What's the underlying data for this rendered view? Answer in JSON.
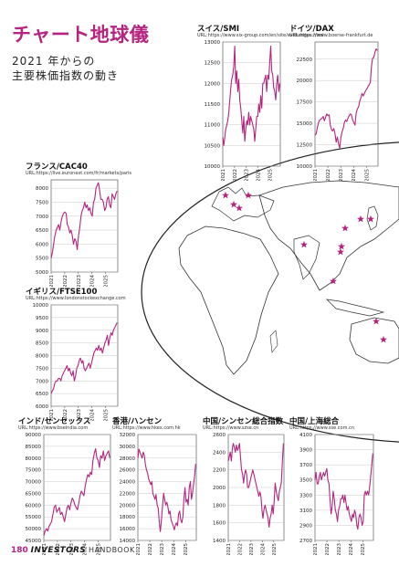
{
  "page": {
    "title": "チャート地球儀",
    "subtitle_line1": "2021 年からの",
    "subtitle_line2": "主要株価指数の動き",
    "footer_page_number": "180",
    "footer_brand": "INVESTORS",
    "footer_brand_sub": "HANDBOOK"
  },
  "colors": {
    "accent": "#b5247e",
    "line": "#b5247e",
    "star": "#b5247e"
  },
  "chart_data": [
    {
      "id": "smi",
      "type": "line",
      "title": "スイス/SMI",
      "url": "URL:https://www.six-group.com/en/site/exchanges.html",
      "yticks": [
        10000,
        10500,
        11000,
        11500,
        12000,
        12500,
        13000
      ],
      "ylim": [
        10000,
        13000
      ],
      "xlim": [
        2021,
        2025.9
      ],
      "xticks": [
        "2021",
        "2022",
        "2023",
        "2024",
        "2025"
      ],
      "series": [
        {
          "values": [
            10700,
            10500,
            10700,
            10900,
            11000,
            11100,
            11300,
            11600,
            11900,
            12100,
            12200,
            12400,
            12900,
            12000,
            12300,
            11800,
            12100,
            11600,
            11400,
            11100,
            10800,
            11200,
            10600,
            10900,
            11100,
            11000,
            11300,
            11000,
            11200,
            11100,
            11000,
            10900,
            10600,
            10900,
            11200,
            11200,
            11500,
            11300,
            11700,
            11400,
            12000,
            12000,
            12100,
            12200,
            11800,
            12200,
            12100,
            12500,
            12900,
            12300,
            12200,
            11900,
            11800,
            11600,
            12000,
            12200,
            11800,
            12000
          ]
        }
      ]
    },
    {
      "id": "dax",
      "type": "line",
      "title": "ドイツ/DAX",
      "url": "URL:https://www.boerse-frankfurt.de",
      "yticks": [
        10000,
        12500,
        15000,
        17500,
        20000,
        22500
      ],
      "ylim": [
        10000,
        24500
      ],
      "xlim": [
        2021,
        2025.9
      ],
      "xticks": [
        "2021",
        "2022",
        "2023",
        "2024",
        "2025"
      ],
      "series": [
        {
          "values": [
            13600,
            13800,
            14500,
            15100,
            15400,
            15500,
            15600,
            15800,
            15300,
            15700,
            16100,
            15900,
            16000,
            14800,
            14300,
            14100,
            14400,
            13800,
            12800,
            13400,
            12600,
            12100,
            13300,
            14000,
            14400,
            15100,
            15400,
            15200,
            15600,
            15900,
            16100,
            16000,
            15400,
            15100,
            14800,
            16200,
            16700,
            16900,
            17600,
            18000,
            18500,
            18200,
            18500,
            18800,
            19000,
            19300,
            19500,
            19800,
            21700,
            22600,
            22700,
            23300,
            23700,
            23500
          ]
        }
      ]
    },
    {
      "id": "cac40",
      "type": "line",
      "title": "フランス/CAC40",
      "url": "URL:https://live.euronext.com/fr/markets/paris",
      "yticks": [
        5000,
        5500,
        6000,
        6500,
        7000,
        7500,
        8000
      ],
      "ylim": [
        5000,
        8300
      ],
      "xlim": [
        2021,
        2025.9
      ],
      "xticks": [
        "2021",
        "2022",
        "2023",
        "2024",
        "2025"
      ],
      "series": [
        {
          "values": [
            5500,
            5700,
            6000,
            6300,
            6500,
            6600,
            6700,
            6500,
            6800,
            7000,
            7100,
            7150,
            7100,
            6700,
            6600,
            6400,
            6500,
            6300,
            6000,
            6200,
            6100,
            5800,
            6300,
            6600,
            7000,
            7200,
            7300,
            7500,
            7300,
            7400,
            7200,
            7300,
            7100,
            7000,
            7500,
            7600,
            8000,
            8100,
            8200,
            7900,
            7600,
            7600,
            7500,
            7200,
            7300,
            7600,
            7700,
            7400,
            7300,
            7800,
            7700,
            7600,
            7800,
            7900
          ]
        }
      ]
    },
    {
      "id": "ftse100",
      "type": "line",
      "title": "イギリス/FTSE100",
      "url": "URL:https://www.londonstockexchange.com",
      "yticks": [
        6000,
        6500,
        7000,
        7500,
        8000,
        8500,
        9000,
        9500,
        10000
      ],
      "ylim": [
        6000,
        10000
      ],
      "xlim": [
        2021,
        2025.9
      ],
      "xticks": [
        "2021",
        "2022",
        "2023",
        "2024",
        "2025"
      ],
      "series": [
        {
          "values": [
            6500,
            6600,
            6700,
            6900,
            7000,
            7000,
            7100,
            7100,
            7000,
            7200,
            7300,
            7400,
            7500,
            7600,
            7400,
            7500,
            7300,
            7200,
            7400,
            7000,
            7200,
            7500,
            7600,
            7800,
            7900,
            7700,
            7800,
            7500,
            7400,
            7500,
            7600,
            7700,
            7500,
            7700,
            7900,
            8100,
            8200,
            8300,
            8200,
            8400,
            8200,
            8300,
            8100,
            8300,
            8500,
            8600,
            8800,
            8400,
            8700,
            8900,
            8800,
            9000,
            9100,
            9200,
            9300
          ]
        }
      ]
    },
    {
      "id": "sensex",
      "type": "line",
      "title": "インド/センセックス",
      "url": "URL:https://www.bseindia.com",
      "yticks": [
        45000,
        50000,
        55000,
        60000,
        65000,
        70000,
        75000,
        80000,
        85000,
        90000
      ],
      "ylim": [
        45000,
        90000
      ],
      "xlim": [
        2021,
        2025.9
      ],
      "xticks": [
        "2021",
        "2022",
        "2023",
        "2024",
        "2025"
      ],
      "series": [
        {
          "values": [
            47000,
            49000,
            50000,
            49000,
            51000,
            52000,
            53000,
            56000,
            59000,
            60000,
            57000,
            58000,
            59000,
            56000,
            57000,
            55000,
            53000,
            56000,
            59000,
            60000,
            58000,
            61000,
            63000,
            62000,
            60000,
            59000,
            58000,
            61000,
            64000,
            66000,
            65000,
            64000,
            68000,
            71000,
            73000,
            72000,
            74000,
            73000,
            79000,
            82000,
            84000,
            80000,
            79000,
            76000,
            81000,
            80000,
            83000,
            79000,
            81000,
            82000,
            83000,
            80000
          ]
        }
      ]
    },
    {
      "id": "hangseng",
      "type": "line",
      "title": "香港/ハンセン",
      "url": "URL:https://www.hkex.com.hk",
      "yticks": [
        14000,
        16000,
        18000,
        20000,
        22000,
        24000,
        26000,
        28000,
        30000,
        32000
      ],
      "ylim": [
        14000,
        32000
      ],
      "xlim": [
        2021,
        2025.9
      ],
      "xticks": [
        "2021",
        "2022",
        "2023",
        "2024",
        "2025"
      ],
      "series": [
        {
          "values": [
            28000,
            29500,
            29000,
            28500,
            28000,
            29000,
            28500,
            27000,
            26000,
            25500,
            24500,
            24000,
            23500,
            24000,
            22000,
            21500,
            21000,
            21800,
            20000,
            19500,
            17000,
            15500,
            17500,
            19800,
            22000,
            21000,
            20000,
            20500,
            19800,
            18500,
            19000,
            17500,
            17000,
            16500,
            15800,
            16600,
            17000,
            16500,
            18500,
            19000,
            17500,
            17000,
            18000,
            21000,
            23000,
            20500,
            21000,
            20000,
            23000,
            24000,
            21000,
            22000,
            23500,
            25000,
            27000
          ]
        }
      ]
    },
    {
      "id": "szse",
      "type": "line",
      "title": "中国/シンセン総合指数",
      "url": "URL:https://www.szse.cn",
      "yticks": [
        1400,
        1600,
        1800,
        2000,
        2200,
        2400,
        2600
      ],
      "ylim": [
        1400,
        2600
      ],
      "xlim": [
        2021,
        2025.9
      ],
      "xticks": [
        "2021",
        "2022",
        "2023",
        "2024",
        "2025"
      ],
      "series": [
        {
          "values": [
            2300,
            2350,
            2400,
            2300,
            2450,
            2500,
            2450,
            2400,
            2480,
            2420,
            2450,
            2500,
            2350,
            2200,
            2150,
            2050,
            2150,
            2200,
            2150,
            2000,
            2000,
            2050,
            2100,
            2150,
            2200,
            2150,
            2100,
            2050,
            2000,
            1950,
            1900,
            1950,
            1900,
            1750,
            1650,
            1750,
            1800,
            1750,
            1700,
            1650,
            1550,
            1650,
            1700,
            1800,
            1700,
            1850,
            2050,
            1950,
            1900,
            1850,
            1950,
            2000,
            2050,
            2300,
            2500
          ]
        }
      ]
    },
    {
      "id": "sse",
      "type": "line",
      "title": "中国/上海総合",
      "url": "URL:https://www.sse.com.cn",
      "yticks": [
        2700,
        2900,
        3100,
        3300,
        3500,
        3700,
        3900,
        4100
      ],
      "ylim": [
        2700,
        4100
      ],
      "xlim": [
        2021,
        2025.9
      ],
      "xticks": [
        "2021",
        "2022",
        "2023",
        "2024",
        "2025"
      ],
      "series": [
        {
          "values": [
            3500,
            3600,
            3450,
            3450,
            3550,
            3600,
            3500,
            3550,
            3600,
            3550,
            3600,
            3650,
            3500,
            3450,
            3250,
            3050,
            3150,
            3350,
            3250,
            3100,
            3050,
            2950,
            3100,
            3150,
            3250,
            3250,
            3300,
            3200,
            3300,
            3200,
            3100,
            3150,
            3050,
            3000,
            2950,
            3050,
            3000,
            3100,
            3050,
            2900,
            2850,
            3000,
            3050,
            3000,
            2900,
            2950,
            3300,
            3350,
            3300,
            3350,
            3300,
            3400,
            3550,
            3700,
            3850
          ]
        }
      ]
    }
  ]
}
